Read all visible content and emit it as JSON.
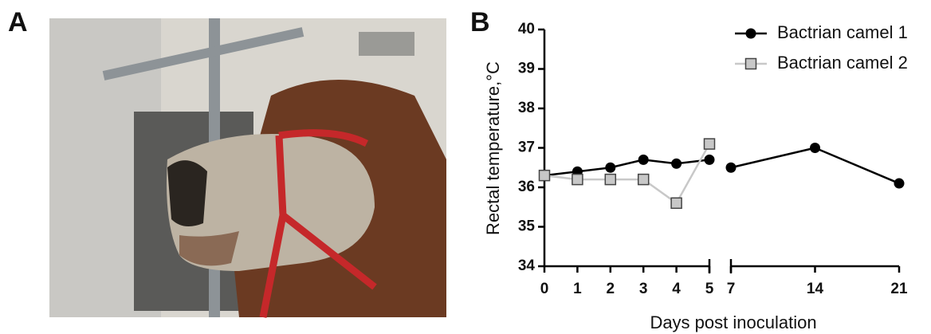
{
  "panel_labels": [
    "A",
    "B"
  ],
  "chart_data": {
    "type": "line",
    "x_label": "Days post inoculation",
    "y_label": "Rectal temperature,°C",
    "x": [
      0,
      1,
      2,
      3,
      4,
      5,
      7,
      14,
      21
    ],
    "xlim": [
      [
        0,
        5
      ],
      [
        7,
        21
      ]
    ],
    "xticks": [
      0,
      1,
      2,
      3,
      4,
      5,
      7,
      14,
      21
    ],
    "ylim": [
      34,
      40
    ],
    "yticks": [
      34,
      35,
      36,
      37,
      38,
      39,
      40
    ],
    "legend": "upper right",
    "series": [
      {
        "name": "Bactrian camel 1",
        "color": "#000000",
        "marker": "circle",
        "values": [
          36.3,
          36.4,
          36.5,
          36.7,
          36.6,
          36.7,
          36.5,
          37.0,
          36.1
        ]
      },
      {
        "name": "Bactrian camel 2",
        "color": "#c8c8c8",
        "marker": "square",
        "values": [
          36.3,
          36.2,
          36.2,
          36.2,
          35.6,
          37.1,
          null,
          null,
          null
        ]
      }
    ]
  }
}
